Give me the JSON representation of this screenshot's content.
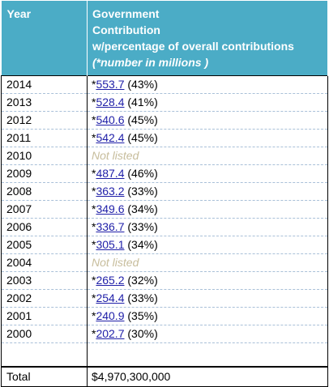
{
  "header": {
    "year": "Year",
    "contribution_line1": "Government",
    "contribution_line2": "Contribution",
    "contribution_line3": "w/percentage of overall contributions",
    "contribution_note": "(*number in millions )"
  },
  "rows": [
    {
      "year": "2014",
      "prefix": "*",
      "value": "553.7",
      "pct": "(43%)"
    },
    {
      "year": "2013",
      "prefix": "*",
      "value": "528.4",
      "pct": "(41%)"
    },
    {
      "year": "2012",
      "prefix": "*",
      "value": "540.6",
      "pct": "(45%)"
    },
    {
      "year": "2011",
      "prefix": "*",
      "value": "542.4",
      "pct": "(45%)"
    },
    {
      "year": "2010",
      "prefix": "",
      "value": "",
      "pct": "",
      "not_listed": "Not listed"
    },
    {
      "year": "2009",
      "prefix": "*",
      "value": "487.4",
      "pct": "(46%)"
    },
    {
      "year": "2008",
      "prefix": "*",
      "value": "363.2",
      "pct": "(33%)"
    },
    {
      "year": "2007",
      "prefix": "*",
      "value": "349.6",
      "pct": "(34%)"
    },
    {
      "year": "2006",
      "prefix": "*",
      "value": "336.7",
      "pct": "(33%)"
    },
    {
      "year": "2005",
      "prefix": "*",
      "value": "305.1",
      "pct": "(34%)"
    },
    {
      "year": "2004",
      "prefix": "",
      "value": "",
      "pct": "",
      "not_listed": "Not listed"
    },
    {
      "year": "2003",
      "prefix": "*",
      "value": "265.2",
      "pct": "(32%)"
    },
    {
      "year": "2002",
      "prefix": "*",
      "value": "254.4",
      "pct": "(33%)"
    },
    {
      "year": "2001",
      "prefix": "*",
      "value": "240.9",
      "pct": "(35%)"
    },
    {
      "year": "2000",
      "prefix": "*",
      "value": "202.7",
      "pct": "(30%)"
    }
  ],
  "total": {
    "label": "Total",
    "value": "$4,970,300,000"
  },
  "colors": {
    "header_bg": "#4bacc6",
    "link": "#1f1fa8",
    "not_listed": "#c7bd9c"
  }
}
